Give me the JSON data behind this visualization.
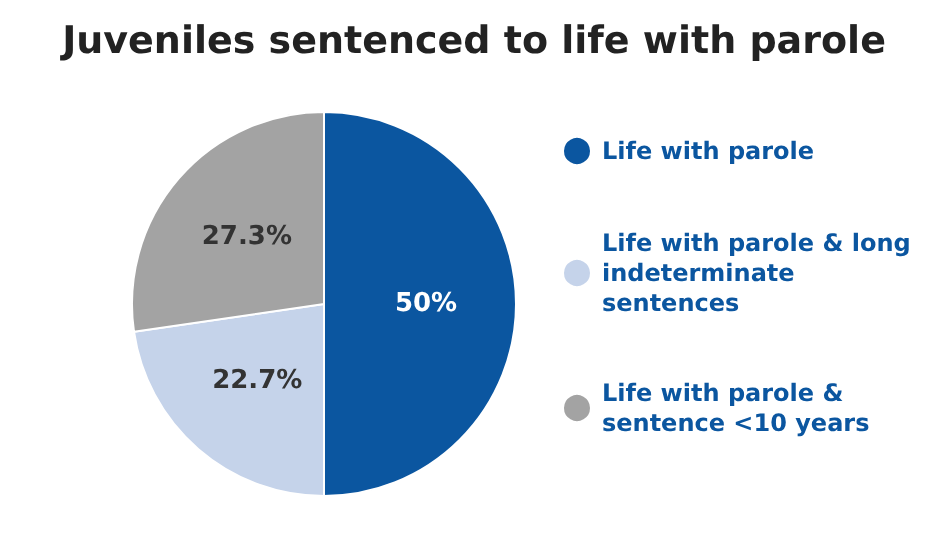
{
  "chart_data": {
    "type": "pie",
    "title": "Juveniles sentenced to life with parole",
    "categories": [
      "Life with parole",
      "Life with parole & long indeterminate sentences",
      "Life with parole & sentence <10 years"
    ],
    "values": [
      50,
      22.7,
      27.3
    ],
    "colors": [
      "#0b56a0",
      "#c5d3ea",
      "#a3a3a3"
    ],
    "value_labels": [
      "50%",
      "22.7%",
      "27.3%"
    ],
    "legend": "right"
  }
}
